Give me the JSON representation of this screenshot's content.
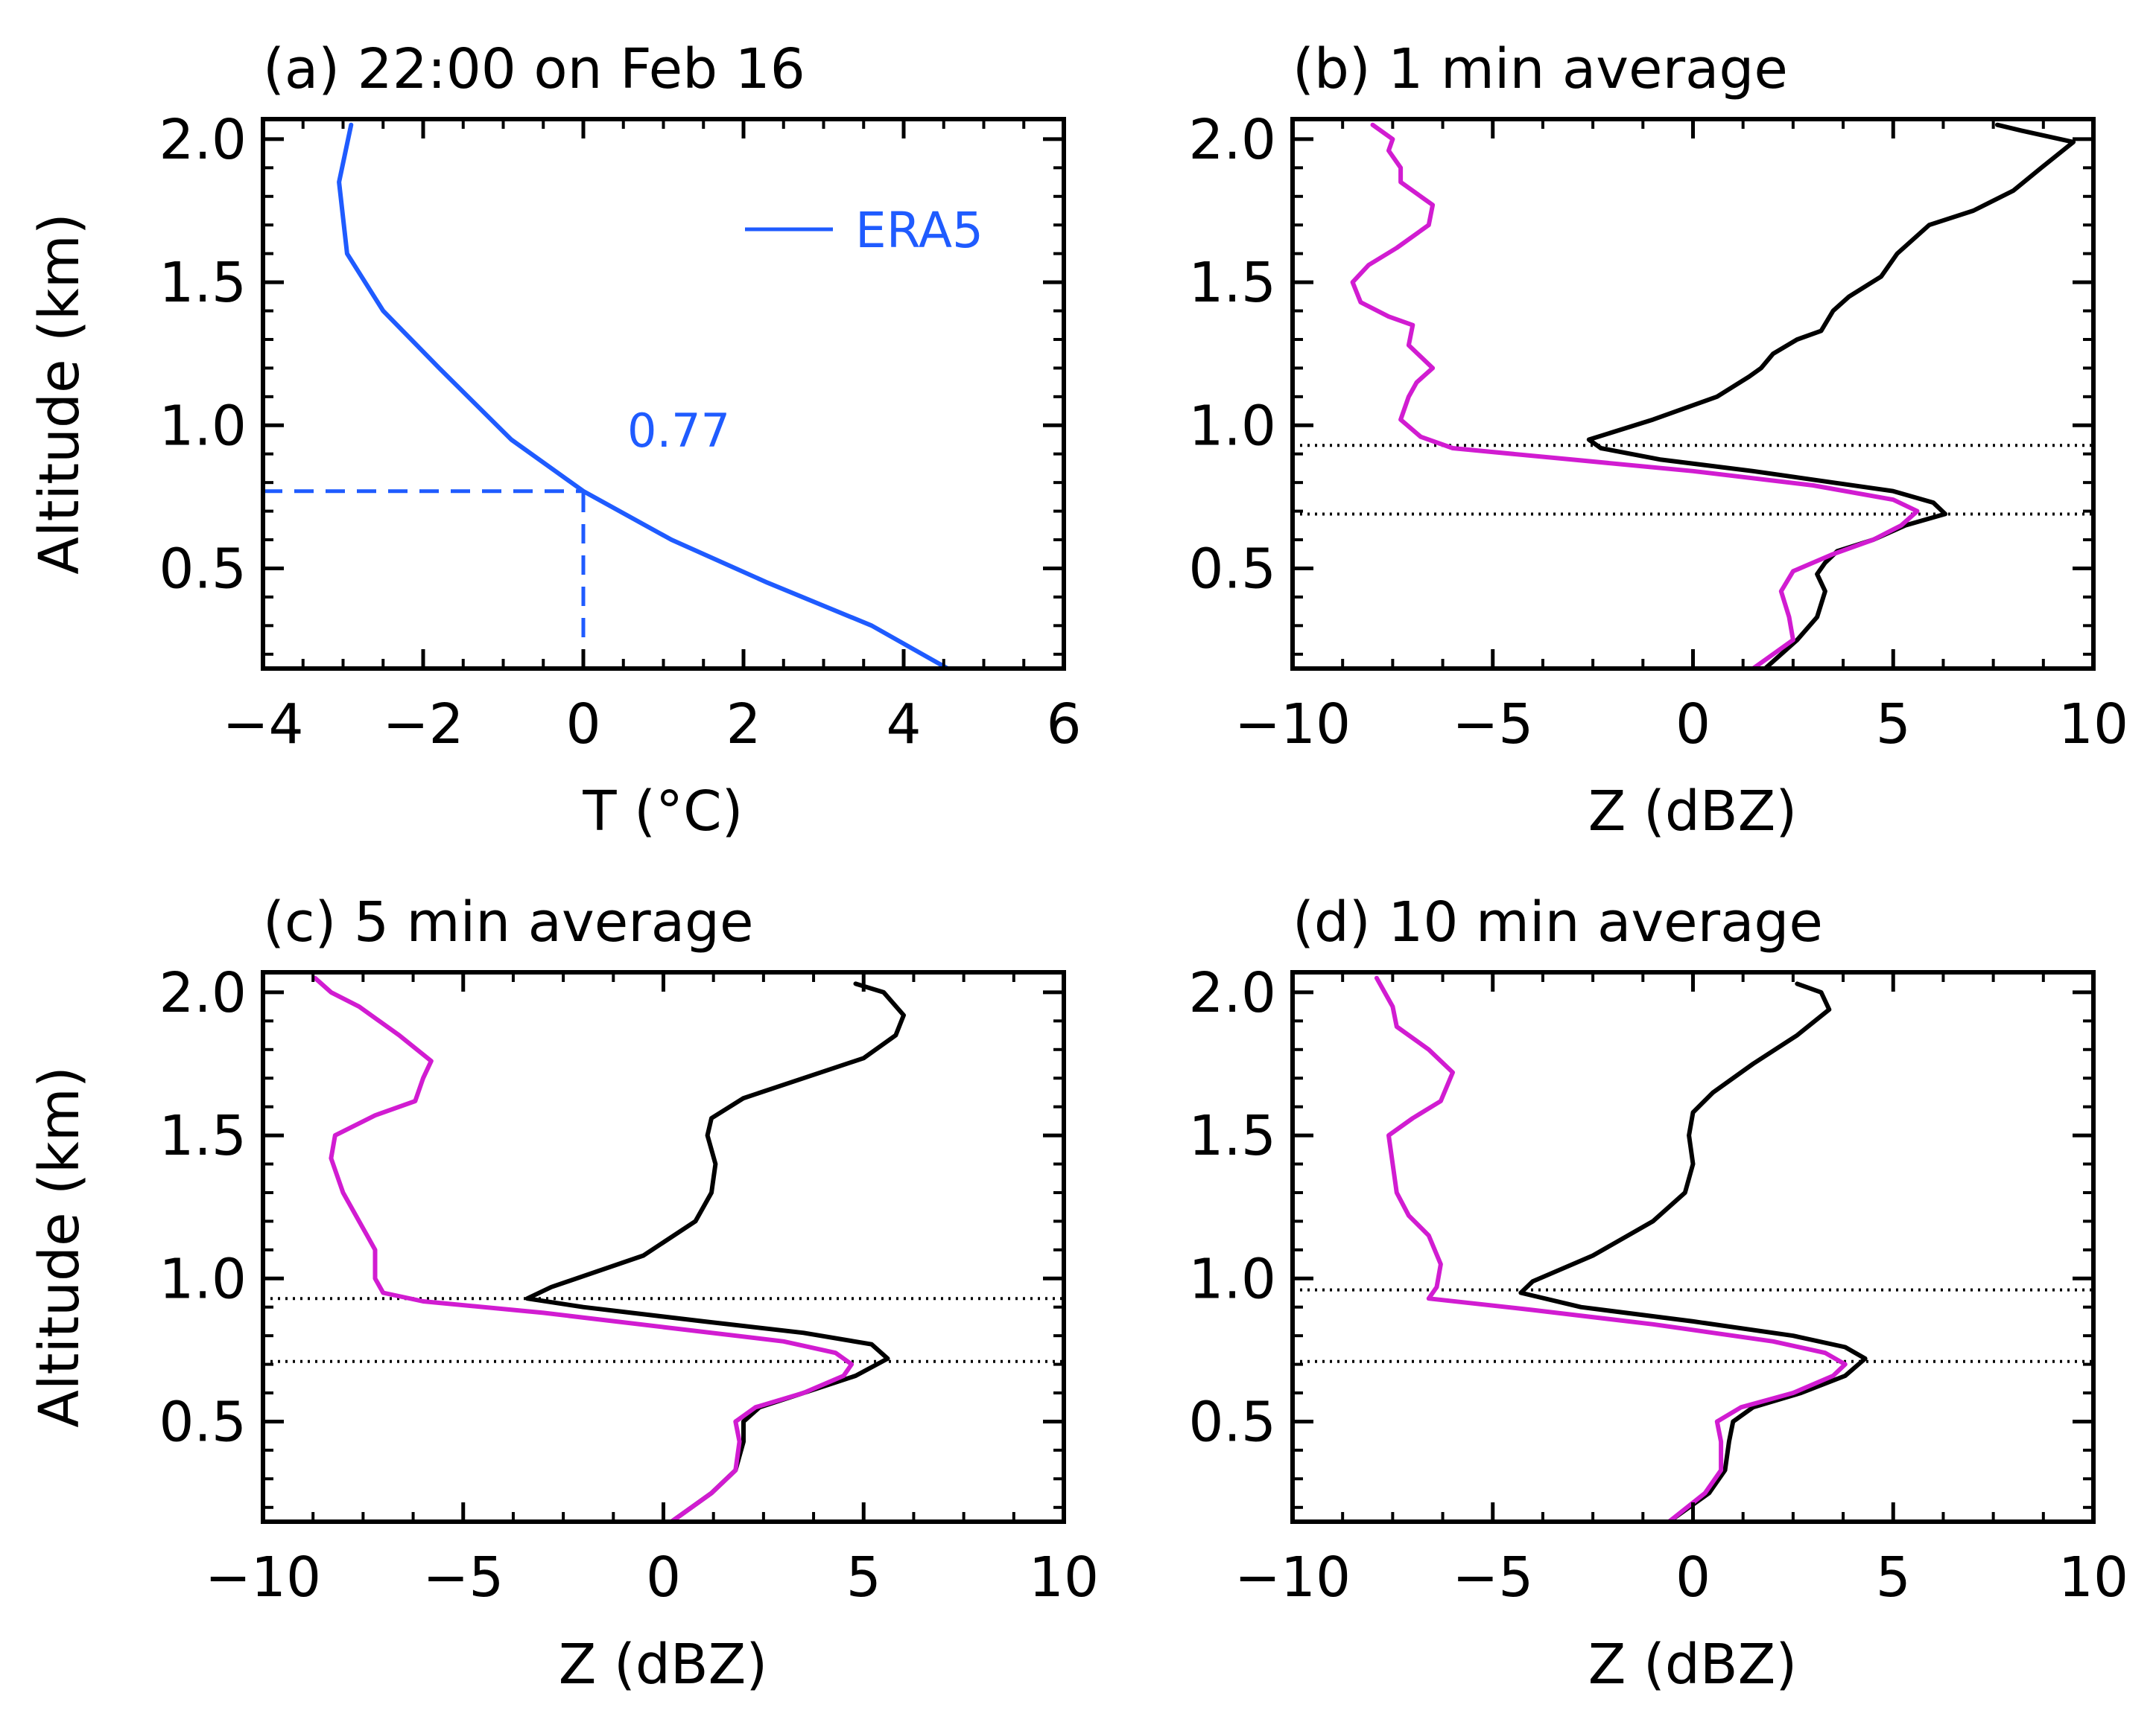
{
  "chart_data": [
    {
      "type": "line",
      "title": "(a) 22:00 on Feb 16",
      "xlabel": "T (°C)",
      "ylabel": "Altitude (km)",
      "xlim": [
        -4,
        6
      ],
      "ylim": [
        0.15,
        2.07
      ],
      "xticks": [
        "−4",
        "−2",
        "0",
        "2",
        "4",
        "6"
      ],
      "yticks": [
        "0.5",
        "1.0",
        "1.5",
        "2.0"
      ],
      "grid": false,
      "legend": "top-right",
      "series": [
        {
          "name": "ERA5",
          "color": "#1f5bff",
          "style": "solid",
          "x": [
            4.55,
            3.6,
            2.3,
            1.1,
            0.0,
            -0.9,
            -1.8,
            -2.5,
            -2.95,
            -3.05,
            -2.9
          ],
          "y": [
            0.15,
            0.3,
            0.45,
            0.6,
            0.77,
            0.95,
            1.2,
            1.4,
            1.6,
            1.85,
            2.05
          ]
        }
      ],
      "reference_lines": [
        {
          "type": "horizontal",
          "y": 0.77,
          "x_from": -4,
          "x_to": 0,
          "style": "dashed",
          "color": "#1f5bff"
        },
        {
          "type": "vertical",
          "x": 0,
          "y_from": 0.15,
          "y_to": 0.77,
          "style": "dashed",
          "color": "#1f5bff"
        }
      ],
      "annotations": [
        {
          "text": "0.77",
          "x": 0.6,
          "y": 0.92,
          "color": "#1f5bff"
        }
      ]
    },
    {
      "type": "line",
      "title": "(b) 1 min average",
      "xlabel": "Z (dBZ)",
      "ylabel": "",
      "xlim": [
        -10,
        10
      ],
      "ylim": [
        0.15,
        2.07
      ],
      "xticks": [
        "−10",
        "−5",
        "0",
        "5",
        "10"
      ],
      "yticks": [
        "0.5",
        "1.0",
        "1.5",
        "2.0"
      ],
      "grid": false,
      "series": [
        {
          "color": "#000000",
          "x": [
            1.8,
            2.6,
            3.1,
            3.3,
            3.1,
            3.3,
            3.6,
            4.5,
            5.3,
            6.3,
            6.0,
            5.0,
            3.5,
            1.5,
            -0.8,
            -2.3,
            -2.6,
            -1.0,
            0.6,
            1.4,
            1.7,
            2.0,
            2.6,
            3.2,
            3.5,
            3.9,
            4.7,
            5.1,
            5.9,
            7.0,
            8.0,
            8.7,
            9.5,
            8.2,
            7.6
          ],
          "y": [
            0.15,
            0.25,
            0.33,
            0.42,
            0.48,
            0.52,
            0.56,
            0.6,
            0.65,
            0.69,
            0.73,
            0.77,
            0.8,
            0.84,
            0.88,
            0.92,
            0.95,
            1.02,
            1.1,
            1.17,
            1.2,
            1.25,
            1.3,
            1.33,
            1.4,
            1.45,
            1.52,
            1.6,
            1.7,
            1.75,
            1.82,
            1.9,
            1.99,
            2.03,
            2.05
          ]
        },
        {
          "color": "#d11cd1",
          "x": [
            1.5,
            2.5,
            2.4,
            2.2,
            2.5,
            3.5,
            4.5,
            5.2,
            5.6,
            5.0,
            3.0,
            0.0,
            -3.0,
            -6.0,
            -6.8,
            -7.3,
            -7.1,
            -6.9,
            -6.5,
            -7.1,
            -7.0,
            -7.6,
            -8.3,
            -8.5,
            -8.1,
            -7.4,
            -6.6,
            -6.5,
            -7.3,
            -7.3,
            -7.6,
            -7.5,
            -8.0
          ],
          "y": [
            0.15,
            0.25,
            0.33,
            0.42,
            0.49,
            0.55,
            0.6,
            0.65,
            0.7,
            0.74,
            0.79,
            0.84,
            0.88,
            0.92,
            0.96,
            1.02,
            1.1,
            1.15,
            1.2,
            1.28,
            1.35,
            1.38,
            1.43,
            1.5,
            1.56,
            1.62,
            1.7,
            1.77,
            1.85,
            1.9,
            1.96,
            2.0,
            2.05
          ]
        }
      ],
      "reference_lines": [
        {
          "type": "horizontal",
          "y": 0.93,
          "style": "dotted",
          "color": "#000000"
        },
        {
          "type": "horizontal",
          "y": 0.69,
          "style": "dotted",
          "color": "#000000"
        }
      ]
    },
    {
      "type": "line",
      "title": "(c) 5 min average",
      "xlabel": "Z (dBZ)",
      "ylabel": "Altitude (km)",
      "xlim": [
        -10,
        10
      ],
      "ylim": [
        0.15,
        2.07
      ],
      "xticks": [
        "−10",
        "−5",
        "0",
        "5",
        "10"
      ],
      "yticks": [
        "0.5",
        "1.0",
        "1.5",
        "2.0"
      ],
      "grid": false,
      "series": [
        {
          "color": "#000000",
          "x": [
            0.2,
            1.2,
            1.8,
            2.0,
            2.0,
            2.4,
            3.5,
            4.8,
            5.6,
            5.2,
            3.5,
            1.0,
            -2.0,
            -3.4,
            -2.8,
            -0.5,
            0.8,
            1.2,
            1.3,
            1.1,
            1.2,
            2.0,
            3.5,
            5.0,
            5.8,
            6.0,
            5.5,
            4.8
          ],
          "y": [
            0.15,
            0.25,
            0.33,
            0.43,
            0.5,
            0.55,
            0.6,
            0.66,
            0.72,
            0.77,
            0.81,
            0.85,
            0.9,
            0.93,
            0.97,
            1.08,
            1.2,
            1.3,
            1.4,
            1.5,
            1.56,
            1.63,
            1.7,
            1.77,
            1.85,
            1.92,
            2.0,
            2.03
          ]
        },
        {
          "color": "#d11cd1",
          "x": [
            0.2,
            1.2,
            1.8,
            1.9,
            1.8,
            2.3,
            3.5,
            4.5,
            4.7,
            4.3,
            3.0,
            0.0,
            -3.0,
            -6.0,
            -7.0,
            -7.2,
            -7.2,
            -7.4,
            -7.6,
            -8.0,
            -8.3,
            -8.2,
            -7.2,
            -6.2,
            -6.0,
            -5.8,
            -6.6,
            -7.6,
            -8.3,
            -8.7
          ],
          "y": [
            0.15,
            0.25,
            0.33,
            0.43,
            0.5,
            0.55,
            0.6,
            0.66,
            0.7,
            0.74,
            0.78,
            0.83,
            0.88,
            0.92,
            0.95,
            1.0,
            1.1,
            1.15,
            1.2,
            1.3,
            1.42,
            1.5,
            1.57,
            1.62,
            1.7,
            1.76,
            1.85,
            1.95,
            2.0,
            2.05
          ]
        }
      ],
      "reference_lines": [
        {
          "type": "horizontal",
          "y": 0.93,
          "style": "dotted",
          "color": "#000000"
        },
        {
          "type": "horizontal",
          "y": 0.71,
          "style": "dotted",
          "color": "#000000"
        }
      ]
    },
    {
      "type": "line",
      "title": "(d) 10 min average",
      "xlabel": "Z (dBZ)",
      "ylabel": "",
      "xlim": [
        -10,
        10
      ],
      "ylim": [
        0.15,
        2.07
      ],
      "xticks": [
        "−10",
        "−5",
        "0",
        "5",
        "10"
      ],
      "yticks": [
        "0.5",
        "1.0",
        "1.5",
        "2.0"
      ],
      "grid": false,
      "series": [
        {
          "color": "#000000",
          "x": [
            -0.6,
            0.4,
            0.8,
            0.9,
            1.0,
            1.5,
            2.7,
            3.8,
            4.3,
            3.8,
            2.5,
            0.0,
            -2.8,
            -4.3,
            -4.0,
            -2.5,
            -1.0,
            -0.2,
            0.0,
            -0.1,
            0.0,
            0.5,
            1.5,
            2.6,
            3.4,
            3.2,
            2.6
          ],
          "y": [
            0.15,
            0.25,
            0.33,
            0.43,
            0.5,
            0.55,
            0.6,
            0.66,
            0.72,
            0.76,
            0.8,
            0.85,
            0.9,
            0.95,
            0.99,
            1.08,
            1.2,
            1.3,
            1.4,
            1.5,
            1.58,
            1.65,
            1.75,
            1.85,
            1.94,
            2.0,
            2.03
          ]
        },
        {
          "color": "#d11cd1",
          "x": [
            -0.6,
            0.3,
            0.7,
            0.7,
            0.6,
            1.2,
            2.5,
            3.5,
            3.8,
            3.3,
            2.0,
            -1.0,
            -4.0,
            -6.6,
            -6.4,
            -6.3,
            -6.6,
            -7.1,
            -7.4,
            -7.5,
            -7.6,
            -7.0,
            -6.3,
            -6.0,
            -6.6,
            -7.4,
            -7.5,
            -7.9
          ],
          "y": [
            0.15,
            0.25,
            0.33,
            0.43,
            0.5,
            0.55,
            0.6,
            0.66,
            0.7,
            0.74,
            0.78,
            0.84,
            0.89,
            0.93,
            0.97,
            1.05,
            1.15,
            1.22,
            1.3,
            1.4,
            1.5,
            1.56,
            1.62,
            1.72,
            1.8,
            1.88,
            1.95,
            2.05
          ]
        }
      ],
      "reference_lines": [
        {
          "type": "horizontal",
          "y": 0.96,
          "style": "dotted",
          "color": "#000000"
        },
        {
          "type": "horizontal",
          "y": 0.71,
          "style": "dotted",
          "color": "#000000"
        }
      ]
    }
  ]
}
